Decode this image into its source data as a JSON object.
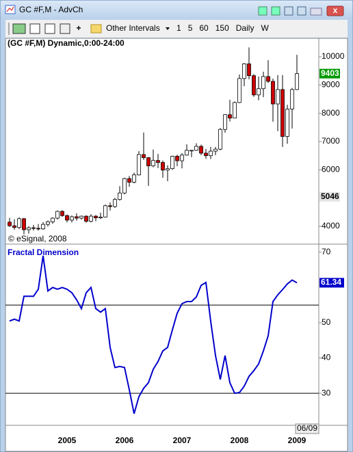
{
  "window": {
    "title": "GC #F,M - AdvCh"
  },
  "toolbar": {
    "intervals": "Other Intervals",
    "buttons": [
      "1",
      "5",
      "60",
      "150",
      "Daily",
      "W"
    ]
  },
  "cursor_date": "06/09",
  "chart_data": [
    {
      "type": "candlestick",
      "title": "(GC #F,M) Dynamic,0:00-24:00",
      "copyright": "© eSignal, 2008",
      "categories": [
        null,
        null,
        null,
        null,
        null,
        null,
        null,
        null,
        null,
        null,
        null,
        null,
        "2005",
        null,
        null,
        null,
        null,
        null,
        null,
        null,
        null,
        null,
        null,
        null,
        "2006",
        null,
        null,
        null,
        null,
        null,
        null,
        null,
        null,
        null,
        null,
        null,
        "2007",
        null,
        null,
        null,
        null,
        null,
        null,
        null,
        null,
        null,
        null,
        null,
        "2008",
        null,
        null,
        null,
        null,
        null,
        null,
        null,
        null,
        null,
        null,
        null,
        "2009"
      ],
      "open": [
        4150,
        4020,
        3960,
        4270,
        3880,
        3950,
        3930,
        3910,
        4070,
        4160,
        4290,
        4530,
        4380,
        4220,
        4340,
        4290,
        4360,
        4180,
        4360,
        4300,
        4330,
        4730,
        4700,
        4950,
        5180,
        5690,
        5560,
        5820,
        6540,
        6430,
        6140,
        6330,
        6260,
        5990,
        6040,
        6480,
        6320,
        6520,
        6690,
        6690,
        6830,
        6590,
        6500,
        6660,
        6730,
        7430,
        7950,
        7830,
        8380,
        9230,
        9750,
        9330,
        8650,
        8870,
        9300,
        9130,
        8330,
        8840,
        7180,
        8150,
        8840
      ],
      "high": [
        4300,
        4250,
        4320,
        4300,
        4010,
        4050,
        4080,
        4150,
        4210,
        4320,
        4560,
        4570,
        4420,
        4380,
        4460,
        4380,
        4390,
        4430,
        4400,
        4480,
        4770,
        4840,
        5010,
        5420,
        5720,
        5780,
        5900,
        6660,
        7320,
        6450,
        6720,
        6560,
        6330,
        6160,
        6500,
        6530,
        6590,
        6900,
        6700,
        6940,
        6890,
        6740,
        6810,
        6810,
        7480,
        7970,
        8480,
        8420,
        9370,
        9780,
        10330,
        9390,
        9300,
        9470,
        9880,
        9230,
        9350,
        9350,
        8300,
        8900,
        10070
      ],
      "low": [
        3980,
        3880,
        3900,
        3720,
        3740,
        3850,
        3850,
        3880,
        3990,
        4090,
        4240,
        4340,
        4140,
        4140,
        4200,
        4240,
        4130,
        4140,
        4180,
        4260,
        4310,
        4560,
        4650,
        4910,
        5130,
        5400,
        5520,
        5800,
        6350,
        5430,
        6090,
        6060,
        5720,
        5600,
        6000,
        6130,
        6050,
        6500,
        6450,
        6670,
        6520,
        6390,
        6380,
        6520,
        6690,
        7310,
        7710,
        7830,
        8360,
        8960,
        9200,
        8580,
        8460,
        8570,
        9070,
        7700,
        7370,
        6810,
        6920,
        7460,
        8820
      ],
      "close": [
        4020,
        3960,
        4270,
        3880,
        3950,
        3930,
        3910,
        4070,
        4160,
        4290,
        4530,
        4380,
        4220,
        4340,
        4290,
        4360,
        4180,
        4360,
        4300,
        4330,
        4730,
        4700,
        4950,
        5180,
        5690,
        5560,
        5820,
        6540,
        6430,
        6140,
        6330,
        6260,
        5990,
        6040,
        6480,
        6320,
        6520,
        6690,
        6690,
        6830,
        6590,
        6500,
        6660,
        6730,
        7430,
        7950,
        7830,
        8380,
        9230,
        9750,
        9330,
        8650,
        8870,
        9300,
        9130,
        8330,
        8840,
        7180,
        8150,
        8840,
        9403
      ],
      "ylim": [
        3395,
        10653
      ],
      "yticks": [
        4000,
        6000,
        7000,
        8000,
        9000,
        10000
      ],
      "up_color": "#ffffff",
      "down_color": "#cc0000",
      "last_color": "#009900",
      "cursor_value": 5046
    },
    {
      "type": "line",
      "title": "Fractal Dimension",
      "color": "#0000cc",
      "values": [
        50.5,
        51,
        50.5,
        57.5,
        57.5,
        57.5,
        59.5,
        69,
        59,
        60,
        59.5,
        60,
        59.5,
        58.5,
        56.5,
        54,
        58.5,
        60,
        54,
        53,
        54,
        43,
        37.3,
        37.6,
        37.3,
        31,
        24.2,
        29,
        31.4,
        33,
        36.8,
        39,
        42,
        43,
        48,
        52.7,
        55.4,
        56,
        56,
        57.3,
        60.6,
        61.4,
        50.4,
        40.7,
        33.9,
        40.7,
        33,
        30,
        30.2,
        32,
        34.8,
        36.4,
        38.3,
        42,
        46.3,
        56,
        57.9,
        59.4,
        61,
        62.1,
        61.34
      ],
      "ylim": [
        20.9,
        72.1
      ],
      "yticks": [
        30,
        40,
        50,
        70
      ],
      "levels": [
        30,
        55
      ]
    }
  ]
}
